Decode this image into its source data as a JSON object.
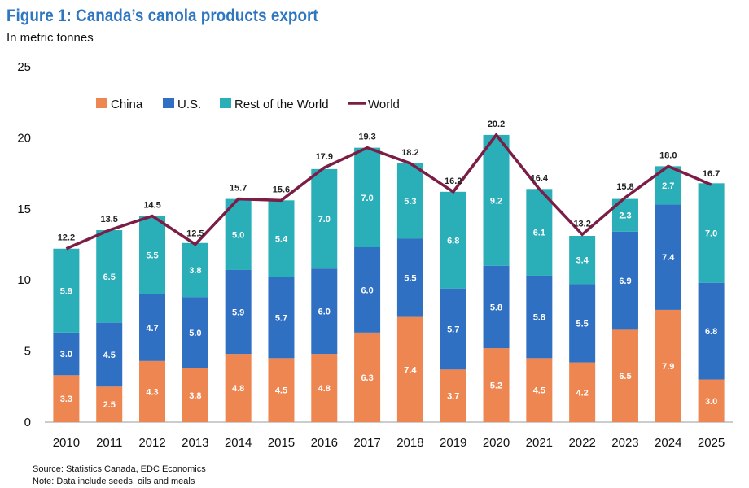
{
  "title": "Figure 1: Canada’s canola products export",
  "subtitle": "In metric tonnes",
  "notes": {
    "source": "Source: Statistics Canada, EDC Economics",
    "note": "Note: Data include seeds, oils and meals"
  },
  "colors": {
    "China": "#EE8651",
    "U.S.": "#2F70C3",
    "Rest of the World": "#2AAEB8",
    "World": "#7B1D45"
  },
  "chart_data": {
    "type": "bar",
    "stacked": true,
    "title": "Figure 1: Canada’s canola products export",
    "ylabel": "In metric tonnes",
    "ylim": [
      0,
      25
    ],
    "yticks": [
      0,
      5,
      10,
      15,
      20,
      25
    ],
    "grid": false,
    "legend_position": "top-left",
    "categories": [
      "2010",
      "2011",
      "2012",
      "2013",
      "2014",
      "2015",
      "2016",
      "2017",
      "2018",
      "2019",
      "2020",
      "2021",
      "2022",
      "2023",
      "2024",
      "2025"
    ],
    "series": [
      {
        "name": "China",
        "type": "bar",
        "values": [
          3.3,
          2.5,
          4.3,
          3.8,
          4.8,
          4.5,
          4.8,
          6.3,
          7.4,
          3.7,
          5.2,
          4.5,
          4.2,
          6.5,
          7.9,
          3.0
        ]
      },
      {
        "name": "U.S.",
        "type": "bar",
        "values": [
          3.0,
          4.5,
          4.7,
          5.0,
          5.9,
          5.7,
          6.0,
          6.0,
          5.5,
          5.7,
          5.8,
          5.8,
          5.5,
          6.9,
          7.4,
          6.8
        ]
      },
      {
        "name": "Rest of the World",
        "type": "bar",
        "values": [
          5.9,
          6.5,
          5.5,
          3.8,
          5.0,
          5.4,
          7.0,
          7.0,
          5.3,
          6.8,
          9.2,
          6.1,
          3.4,
          2.3,
          2.7,
          7.0
        ]
      },
      {
        "name": "World",
        "type": "line",
        "values": [
          12.2,
          13.5,
          14.5,
          12.5,
          15.7,
          15.6,
          17.9,
          19.3,
          18.2,
          16.2,
          20.2,
          16.4,
          13.2,
          15.8,
          18.0,
          16.7
        ]
      }
    ]
  }
}
